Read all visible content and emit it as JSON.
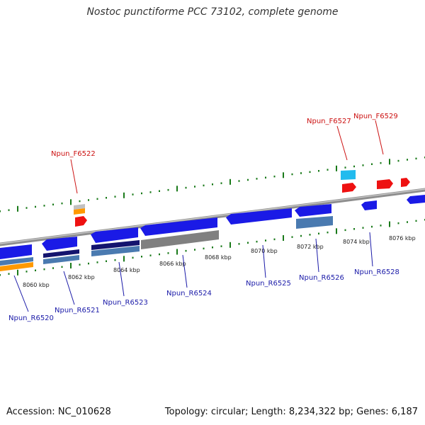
{
  "title": "Nostoc punctiforme PCC 73102, complete genome",
  "footer": {
    "accession": "Accession: NC_010628",
    "summary": "Topology: circular; Length: 8,234,322 bp; Genes: 6,187"
  },
  "colors": {
    "backbone": "#8e8e8e",
    "tick": "#1a7a1a",
    "reverse_label": "#1a1aa8",
    "forward_label": "#cc1111",
    "cds": "#1a1ae6",
    "mrna_dark": "#14146e",
    "mrna_light": "#4a7ab0",
    "orange": "#ff9900",
    "grey_feature": "#808080",
    "red_feature": "#ee1111",
    "cyan_feature": "#22bbee"
  },
  "ticks": [
    {
      "label": "8060 kbp"
    },
    {
      "label": "8062 kbp"
    },
    {
      "label": "8064 kbp"
    },
    {
      "label": "8066 kbp"
    },
    {
      "label": "8068 kbp"
    },
    {
      "label": "8070 kbp"
    },
    {
      "label": "8072 kbp"
    },
    {
      "label": "8074 kbp"
    },
    {
      "label": "8076 kbp"
    }
  ],
  "reverse_genes": [
    {
      "name": "Npun_R6520"
    },
    {
      "name": "Npun_R6521"
    },
    {
      "name": "Npun_R6523"
    },
    {
      "name": "Npun_R6524"
    },
    {
      "name": "Npun_R6525"
    },
    {
      "name": "Npun_R6526"
    },
    {
      "name": "Npun_R6528"
    }
  ],
  "forward_genes": [
    {
      "name": "Npun_F6522"
    },
    {
      "name": "Npun_F6527"
    },
    {
      "name": "Npun_F6529"
    }
  ]
}
